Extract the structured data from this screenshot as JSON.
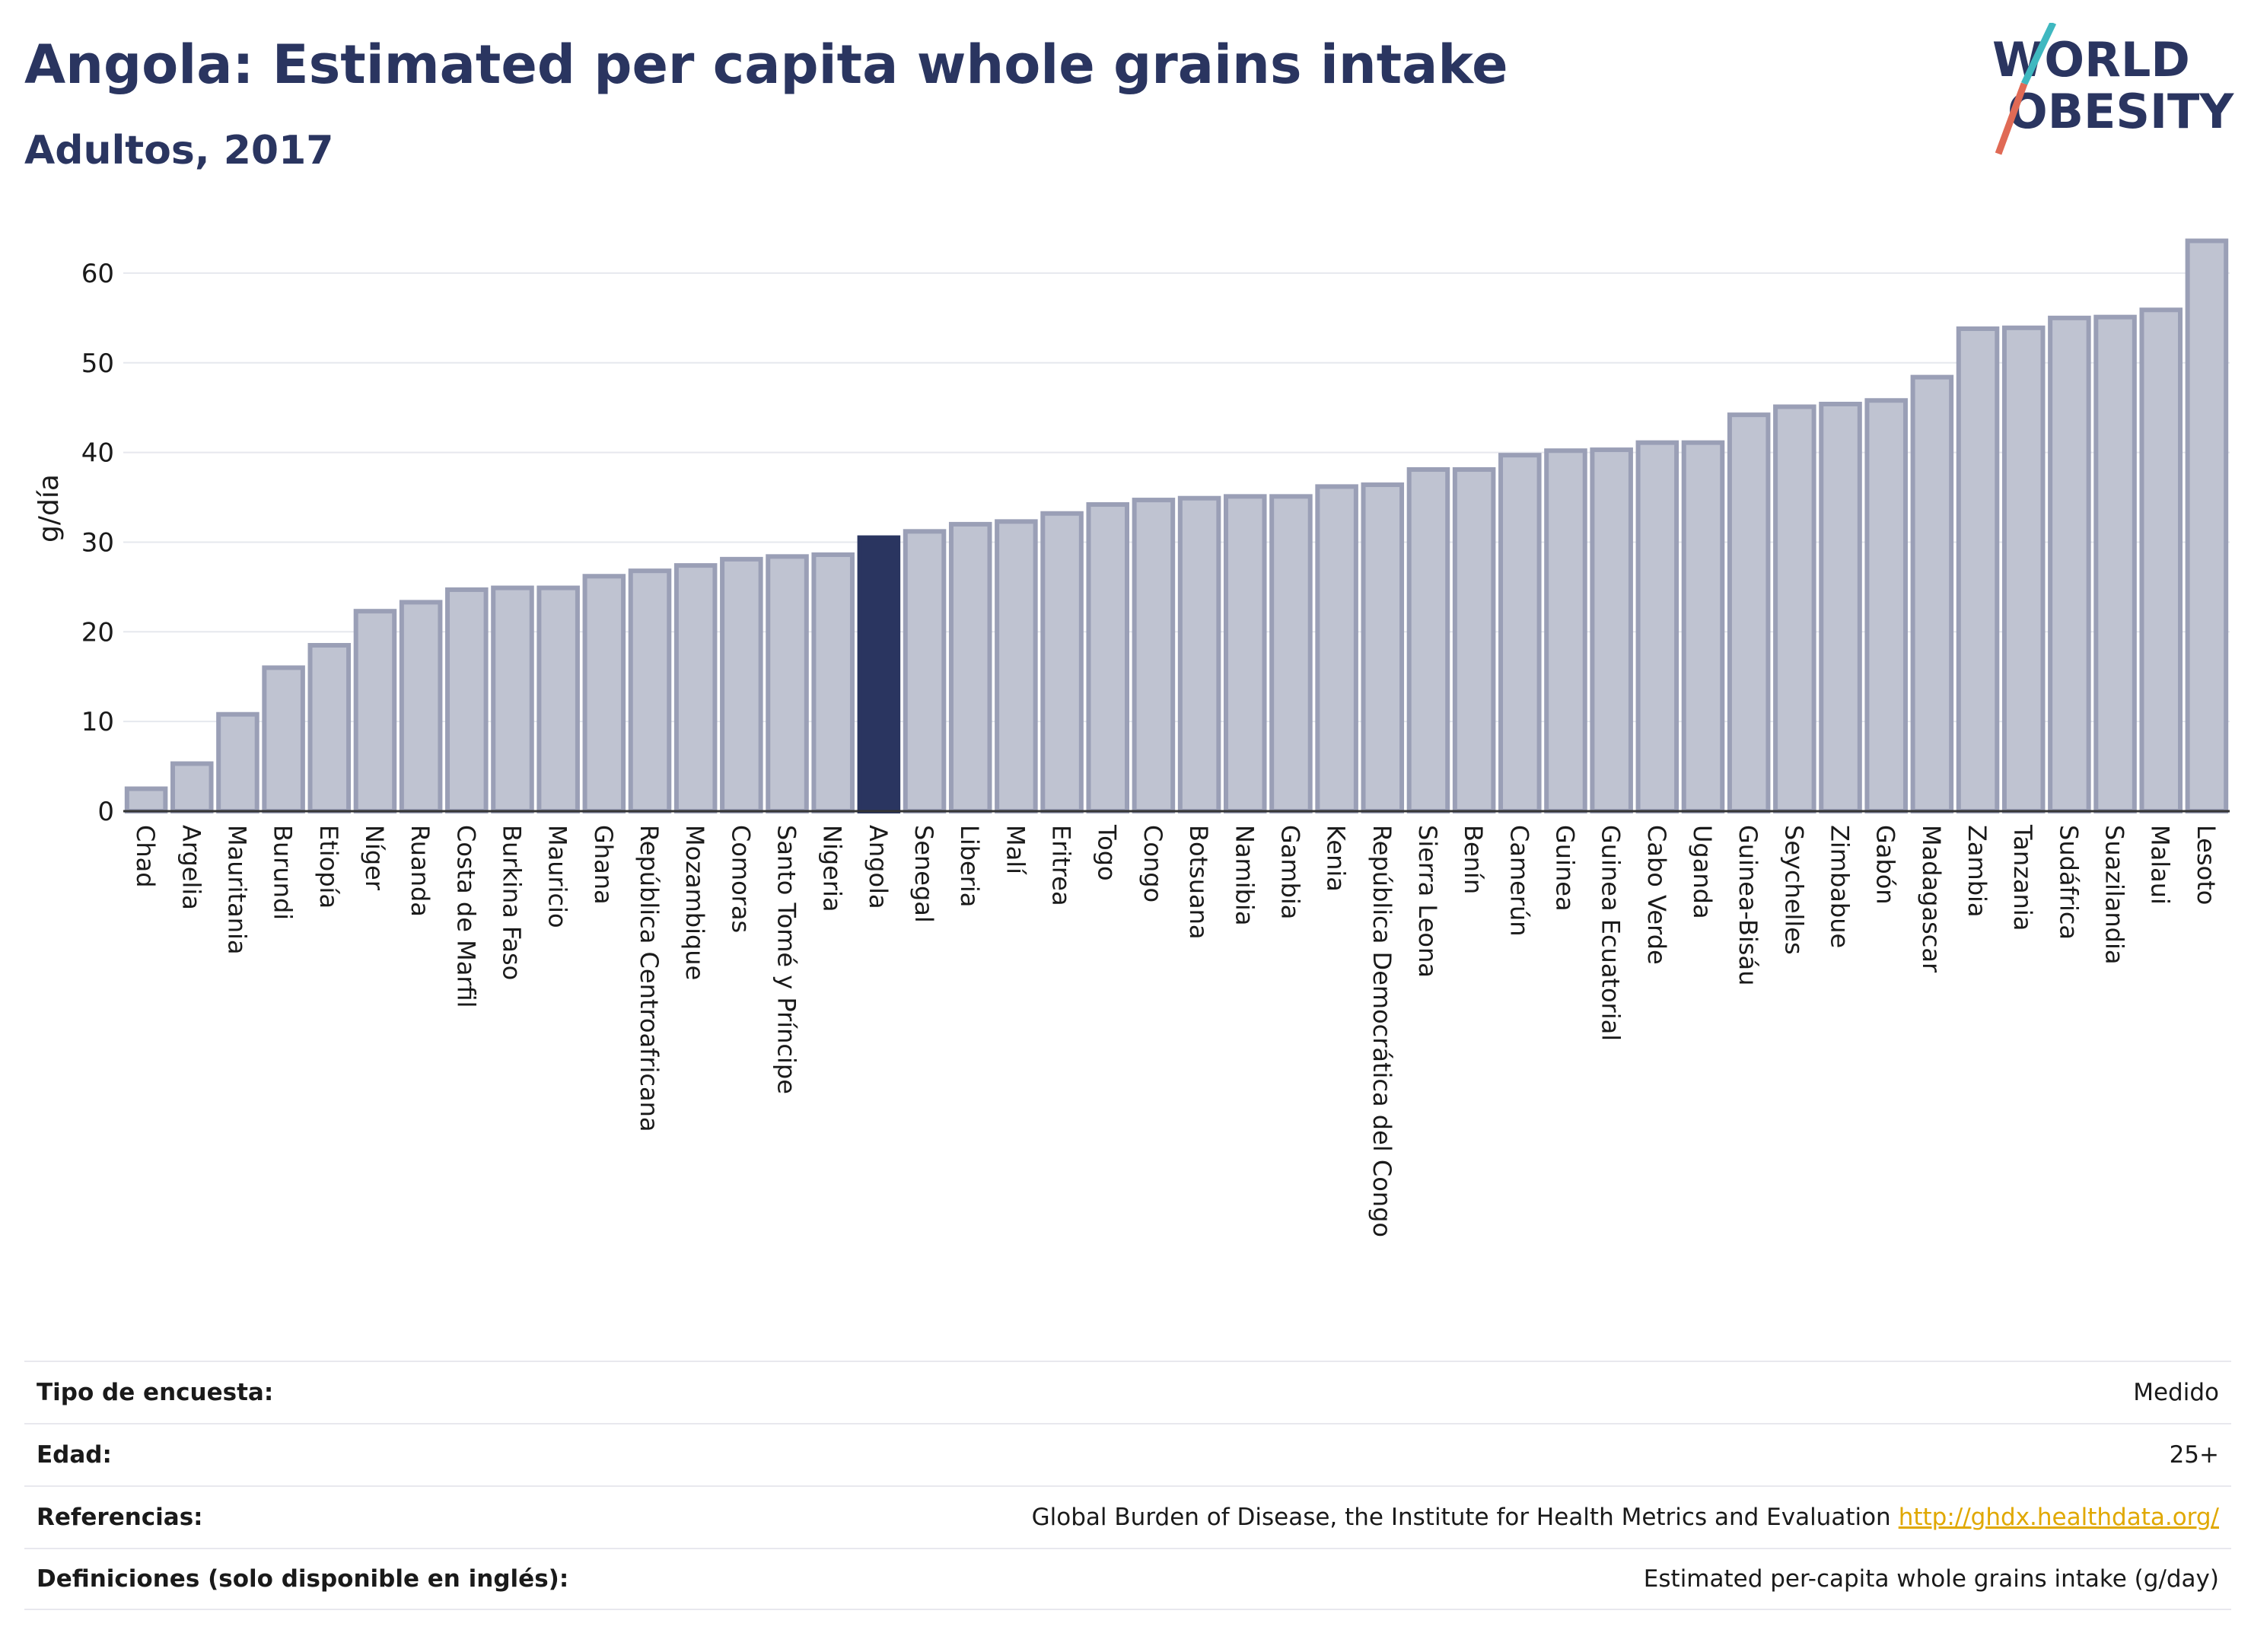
{
  "header": {
    "title": "Angola: Estimated per capita whole grains intake",
    "subtitle": "Adultos, 2017"
  },
  "logo": {
    "line1": "WORLD",
    "line2": "OBESITY"
  },
  "colors": {
    "bar": "#bfc3d1",
    "bar_stroke": "#9a9fb6",
    "highlight": "#2a3560",
    "grid": "#e6e8ee",
    "link": "#e0a800"
  },
  "chart_data": {
    "type": "bar",
    "ylabel": "g/día",
    "ylim": [
      0,
      65
    ],
    "yticks": [
      0,
      10,
      20,
      30,
      40,
      50,
      60
    ],
    "grid": true,
    "highlight": "Angola",
    "categories": [
      "Chad",
      "Argelia",
      "Mauritania",
      "Burundi",
      "Etiopía",
      "Níger",
      "Ruanda",
      "Costa de Marfil",
      "Burkina Faso",
      "Mauricio",
      "Ghana",
      "República Centroafricana",
      "Mozambique",
      "Comoras",
      "Santo Tomé y Príncipe",
      "Nigeria",
      "Angola",
      "Senegal",
      "Liberia",
      "Malí",
      "Eritrea",
      "Togo",
      "Congo",
      "Botsuana",
      "Namibia",
      "Gambia",
      "Kenia",
      "República Democrática del Congo",
      "Sierra Leona",
      "Benín",
      "Camerún",
      "Guinea",
      "Guinea Ecuatorial",
      "Cabo Verde",
      "Uganda",
      "Guinea-Bisáu",
      "Seychelles",
      "Zimbabue",
      "Gabón",
      "Madagascar",
      "Zambia",
      "Tanzania",
      "Sudáfrica",
      "Suazilandia",
      "Malaui",
      "Lesoto"
    ],
    "values": [
      2.5,
      5.3,
      10.8,
      16.0,
      18.5,
      22.3,
      23.3,
      24.7,
      24.9,
      24.9,
      26.2,
      26.8,
      27.4,
      28.1,
      28.4,
      28.6,
      30.5,
      31.2,
      32.0,
      32.3,
      33.2,
      34.2,
      34.7,
      34.9,
      35.1,
      35.1,
      36.2,
      36.4,
      38.1,
      38.1,
      39.7,
      40.2,
      40.3,
      41.1,
      41.1,
      44.2,
      45.1,
      45.4,
      45.8,
      48.4,
      53.8,
      53.9,
      55.0,
      55.1,
      55.9,
      63.6
    ]
  },
  "info": [
    {
      "key": "Tipo de encuesta:",
      "value": "Medido"
    },
    {
      "key": "Edad:",
      "value": "25+"
    },
    {
      "key": "Referencias:",
      "value": "Global Burden of Disease, the Institute for Health Metrics and Evaluation",
      "link": "http://ghdx.healthdata.org/"
    },
    {
      "key": "Definiciones (solo disponible en inglés):",
      "value": "Estimated per-capita whole grains intake (g/day)"
    }
  ]
}
